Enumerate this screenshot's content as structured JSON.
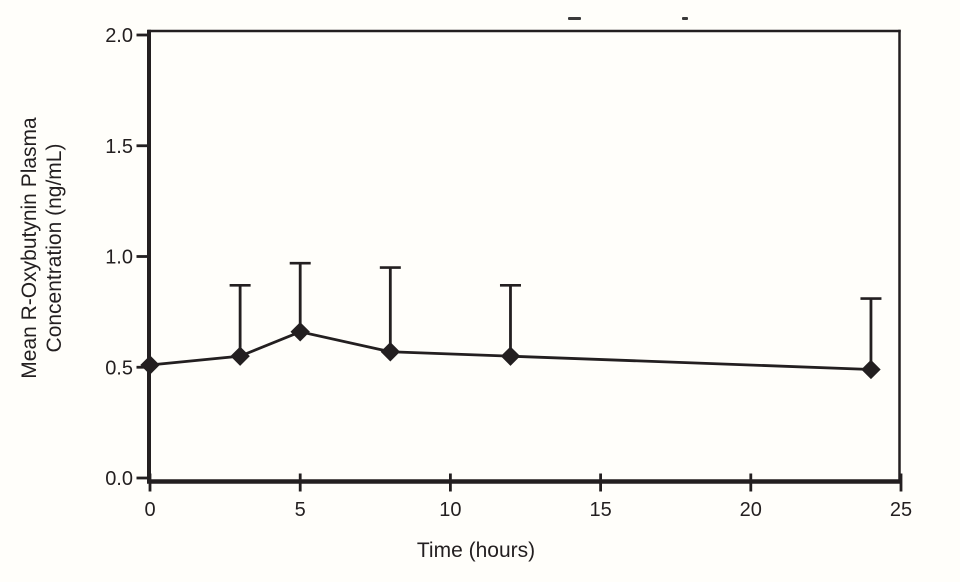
{
  "page": {
    "background": "#fffefa",
    "ink_color": "#231f20"
  },
  "chart_data": {
    "type": "line",
    "title": "",
    "x": [
      0,
      3,
      5,
      8,
      12,
      24
    ],
    "series": [
      {
        "name": "Mean R-Oxybutynin Plasma Concentration",
        "values": [
          0.51,
          0.55,
          0.66,
          0.57,
          0.55,
          0.49
        ],
        "error_upper": [
          0,
          0.32,
          0.31,
          0.38,
          0.32,
          0.32
        ],
        "marker": "filled-diamond",
        "color": "#231f20"
      }
    ],
    "xlabel": "Time (hours)",
    "ylabel": "Mean R-Oxybutynin Plasma Concentration (ng/mL)",
    "ylabel_lines": [
      "Mean R-Oxybutynin Plasma",
      "Concentration (ng/mL)"
    ],
    "xlim": [
      0,
      25
    ],
    "ylim": [
      0.0,
      2.0
    ],
    "xticks": [
      "0",
      "5",
      "10",
      "15",
      "20",
      "25"
    ],
    "yticks": [
      "0.0",
      "0.5",
      "1.0",
      "1.5",
      "2.0"
    ],
    "grid": false,
    "legend": "none",
    "error_bars": "upper-only-with-caps",
    "plot_frame": "closed-box"
  }
}
